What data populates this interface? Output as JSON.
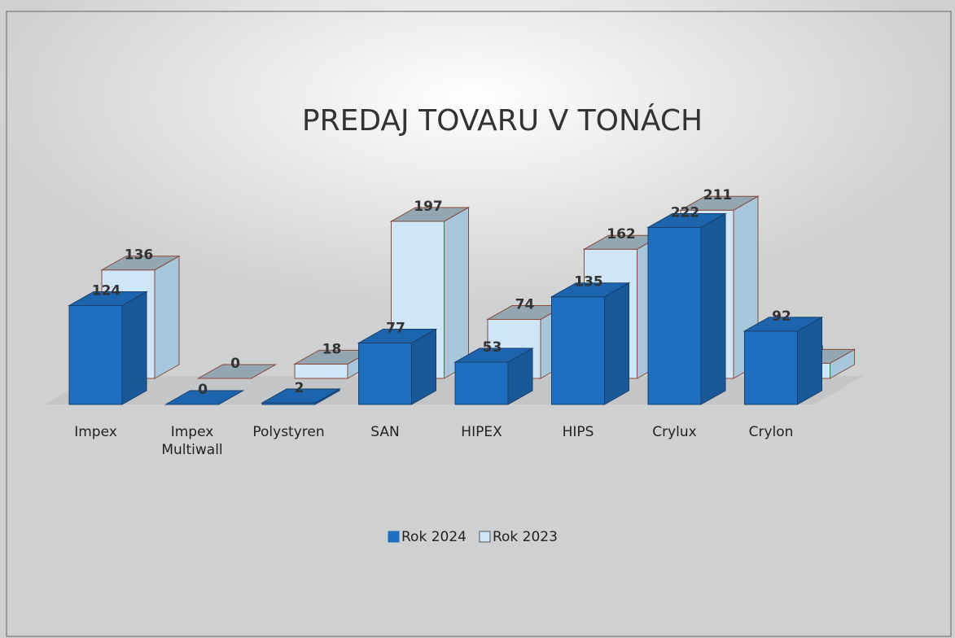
{
  "chart_data": {
    "type": "bar3d",
    "title": "PREDAJ TOVARU V TONÁCH",
    "categories": [
      "Impex",
      "Impex Multiwall",
      "Polystyren",
      "SAN",
      "HIPEX",
      "HIPS",
      "Crylux",
      "Crylon"
    ],
    "series": [
      {
        "name": "Rok 2024",
        "color": "#1f6fc0",
        "values": [
          124,
          0,
          2,
          77,
          53,
          135,
          222,
          92
        ]
      },
      {
        "name": "Rok 2023",
        "color": "#cfe6f8",
        "values": [
          136,
          0,
          18,
          197,
          74,
          162,
          211,
          19
        ]
      }
    ],
    "legend": "bottom"
  }
}
